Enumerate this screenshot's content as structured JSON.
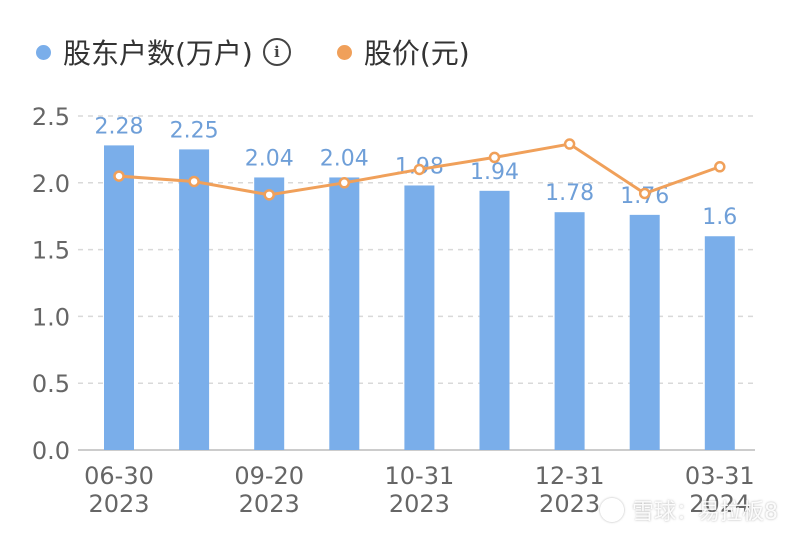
{
  "legend": {
    "shareholders_label": "股东户数(万户)",
    "price_label": "股价(元)",
    "info_icon": "i"
  },
  "watermark": {
    "text": "雪球：易拉板8"
  },
  "colors": {
    "bar": "#7aaeea",
    "line": "#f0a05a",
    "bar_label": "#6f9fd8",
    "grid": "#d9d9d9",
    "axis_text": "#666666"
  },
  "chart_data": {
    "type": "bar",
    "categories": [
      "06-30 2023",
      "",
      "09-20 2023",
      "",
      "10-31 2023",
      "",
      "12-31 2023",
      "",
      "03-31 2024"
    ],
    "x_tick_labels": [
      {
        "index": 0,
        "line1": "06-30",
        "line2": "2023"
      },
      {
        "index": 2,
        "line1": "09-20",
        "line2": "2023"
      },
      {
        "index": 4,
        "line1": "10-31",
        "line2": "2023"
      },
      {
        "index": 6,
        "line1": "12-31",
        "line2": "2023"
      },
      {
        "index": 8,
        "line1": "03-31",
        "line2": "2024"
      }
    ],
    "series": [
      {
        "name": "股东户数(万户)",
        "type": "bar",
        "values": [
          2.28,
          2.25,
          2.04,
          2.04,
          1.98,
          1.94,
          1.78,
          1.76,
          1.6
        ],
        "labels": [
          "2.28",
          "2.25",
          "2.04",
          "2.04",
          "1.98",
          "1.94",
          "1.78",
          "1.76",
          "1.6"
        ]
      },
      {
        "name": "股价(元)",
        "type": "line",
        "values": [
          2.05,
          2.01,
          1.91,
          2.0,
          2.1,
          2.19,
          2.29,
          1.92,
          2.12
        ]
      }
    ],
    "y_ticks": [
      "0.0",
      "0.5",
      "1.0",
      "1.5",
      "2.0",
      "2.5"
    ],
    "ylim": [
      0,
      2.5
    ],
    "grid": true,
    "legend_position": "top-left"
  }
}
